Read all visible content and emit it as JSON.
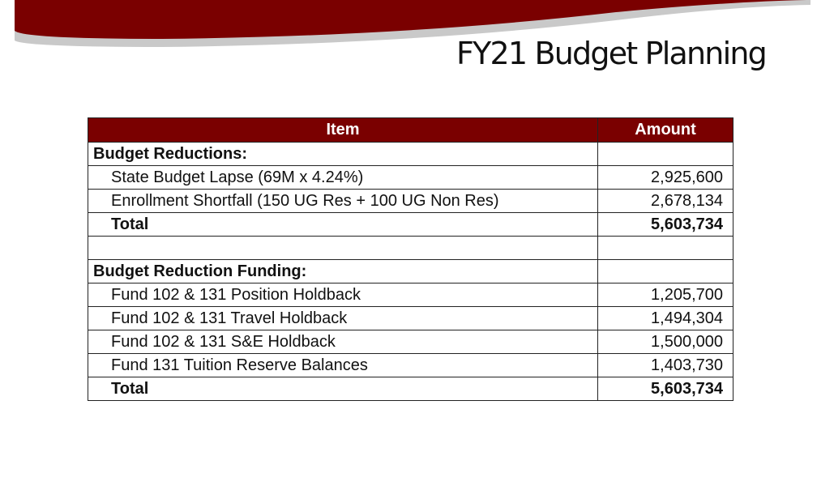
{
  "slide": {
    "title": "FY21 Budget Planning",
    "colors": {
      "banner": "#7a0000",
      "header": "#7a0000"
    }
  },
  "table": {
    "headers": {
      "item": "Item",
      "amount": "Amount"
    },
    "rows": [
      {
        "item": "Budget Reductions:",
        "amount": "",
        "kind": "section"
      },
      {
        "item": "State Budget Lapse (69M x 4.24%)",
        "amount": "2,925,600",
        "kind": "line"
      },
      {
        "item": "Enrollment Shortfall (150 UG Res + 100 UG Non Res)",
        "amount": "2,678,134",
        "kind": "line"
      },
      {
        "item": "Total",
        "amount": "5,603,734",
        "kind": "total"
      },
      {
        "item": "",
        "amount": "",
        "kind": "blank"
      },
      {
        "item": "Budget Reduction Funding:",
        "amount": "",
        "kind": "section"
      },
      {
        "item": "Fund 102 & 131 Position Holdback",
        "amount": "1,205,700",
        "kind": "line"
      },
      {
        "item": "Fund 102 & 131 Travel Holdback",
        "amount": "1,494,304",
        "kind": "line"
      },
      {
        "item": "Fund 102 & 131 S&E Holdback",
        "amount": "1,500,000",
        "kind": "line"
      },
      {
        "item": "Fund 131 Tuition Reserve Balances",
        "amount": "1,403,730",
        "kind": "line"
      },
      {
        "item": "Total",
        "amount": "5,603,734",
        "kind": "total"
      }
    ]
  }
}
